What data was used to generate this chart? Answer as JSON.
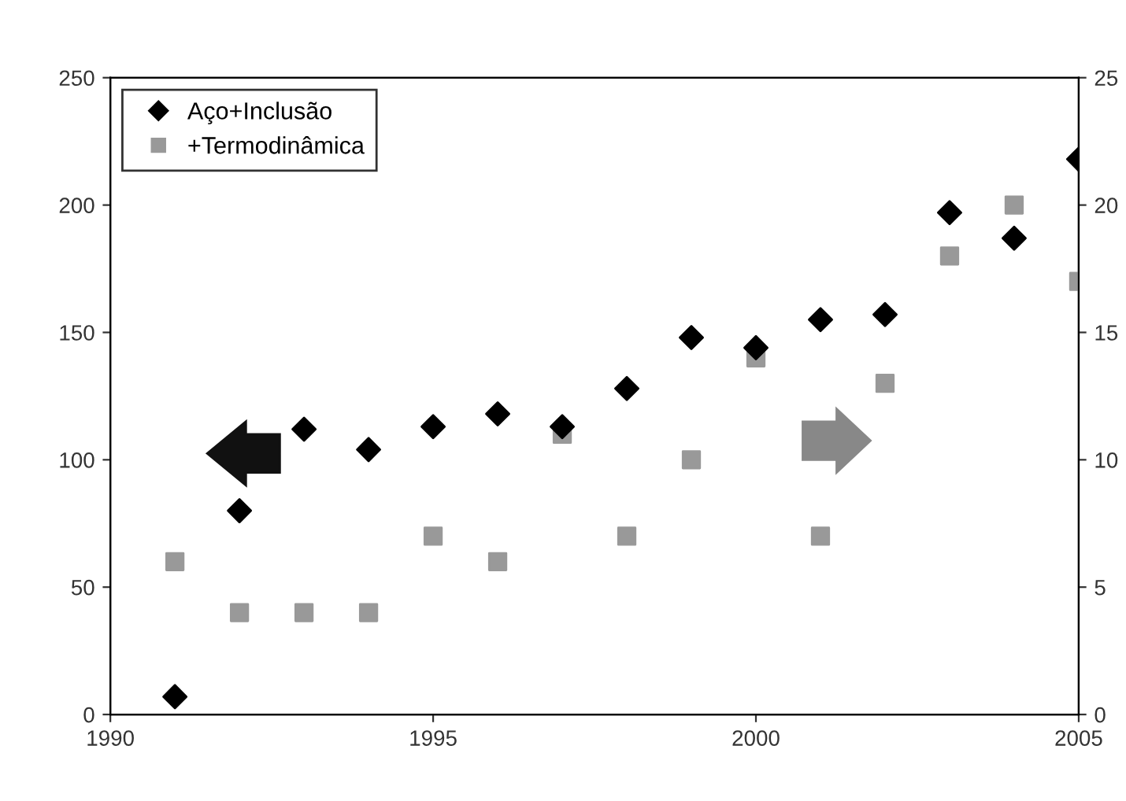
{
  "chart_data": {
    "type": "scatter",
    "x": [
      1991,
      1992,
      1993,
      1994,
      1995,
      1996,
      1997,
      1998,
      1999,
      2000,
      2001,
      2002,
      2003,
      2004,
      2005
    ],
    "series": [
      {
        "name": "Aço+Inclusão",
        "color": "#000000",
        "marker": "diamond",
        "values": [
          7,
          80,
          112,
          104,
          113,
          118,
          113,
          128,
          148,
          144,
          155,
          157,
          197,
          187,
          218
        ]
      },
      {
        "name": "+Termodinâmica",
        "color": "#999999",
        "marker": "square",
        "axis": "y2",
        "values": [
          6,
          4,
          4,
          4,
          7,
          6,
          11,
          7,
          10,
          14,
          7,
          13,
          18,
          20,
          17
        ]
      }
    ],
    "xlim": [
      1990,
      2005
    ],
    "xticks": [
      1990,
      1995,
      2000,
      2005
    ],
    "ylim": [
      0,
      250
    ],
    "yticks": [
      0,
      50,
      100,
      150,
      200,
      250
    ],
    "y2lim": [
      0,
      25
    ],
    "y2ticks": [
      0,
      5,
      10,
      15,
      20,
      25
    ],
    "legend": "top left",
    "grid": false
  }
}
